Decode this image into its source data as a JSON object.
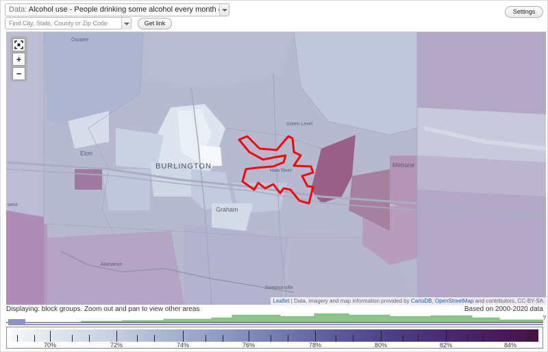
{
  "toolbar": {
    "data_prefix": "Data:",
    "data_value": "Alcohol use - People drinking some alcohol every month (%)",
    "settings_label": "Settings",
    "search_placeholder": "Find City, State, County or Zip Code",
    "get_link_label": "Get link"
  },
  "map": {
    "zoom_in": "+",
    "zoom_out": "−",
    "labels": {
      "city_main": "BURLINGTON",
      "elon": "Elon",
      "graham": "Graham",
      "green_level": "Green Level",
      "haw_river": "Haw River",
      "mebane": "Mebane",
      "alamance": "Alamance",
      "swepsonville": "Swepsonville",
      "ossipee": "Ossipee",
      "west": "west"
    },
    "attribution": {
      "leaflet": "Leaflet",
      "sep": " | Data, imagery and map information provided by ",
      "cartodb": "CartoDB",
      "comma": ", ",
      "osm": "OpenStreetMap",
      "rest": " and contributors, CC-BY-SA"
    },
    "colors": {
      "outline": "#ff0000",
      "high": "#8b2f5c",
      "low": "#eef2f7"
    }
  },
  "footer": {
    "displaying": "Displaying: block groups. Zoom out and pan to view other areas",
    "based_on": "Based on 2000-2020 data",
    "histogram_marker": "?",
    "scale_labels": [
      "70%",
      "72%",
      "74%",
      "76%",
      "78%",
      "80%",
      "82%",
      "84%"
    ]
  }
}
